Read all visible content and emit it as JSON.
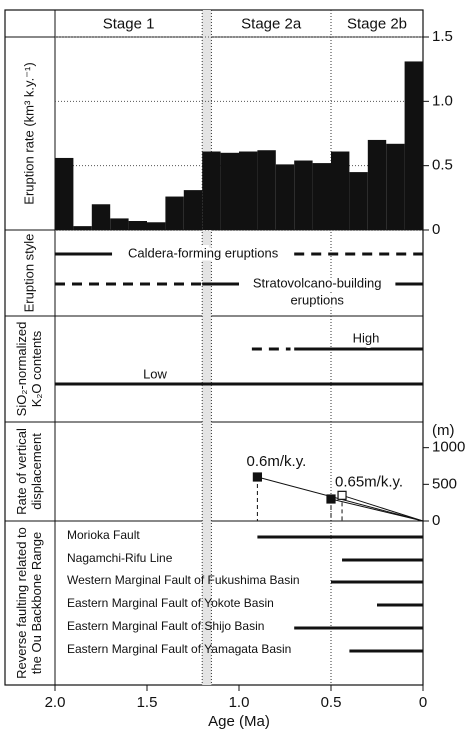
{
  "stages": {
    "names": [
      "Stage 1",
      "Stage 2a",
      "Stage 2b"
    ],
    "boundaries": [
      1.2,
      1.15,
      0.5
    ]
  },
  "x_axis": {
    "label": "Age (Ma)",
    "xlim": [
      2,
      0
    ],
    "xticks": [
      {
        "value": 2,
        "label": "2.0"
      },
      1.5,
      {
        "value": 1,
        "label": "1.0"
      },
      0.5,
      0
    ]
  },
  "chart_data": [
    {
      "type": "histogram",
      "ylabel": [
        "Eruption rate (km³ k.y.⁻¹)"
      ],
      "color": "#111111",
      "bins": [
        2.0,
        1.9,
        1.8,
        1.7,
        1.6,
        1.5,
        1.4,
        1.3,
        1.2,
        1.1,
        1.0,
        0.9,
        0.8,
        0.7,
        0.6,
        0.5,
        0.4,
        0.3,
        0.2,
        0.1,
        0.0
      ],
      "values": [
        0.56,
        0.03,
        0.2,
        0.09,
        0.07,
        0.06,
        0.26,
        0.31,
        0.61,
        0.6,
        0.61,
        0.62,
        0.51,
        0.54,
        0.52,
        0.61,
        0.45,
        0.7,
        0.67,
        1.31
      ],
      "ylim": [
        0,
        1.5
      ],
      "yticks": [
        0,
        {
          "value": 0.5,
          "label": "0.5"
        },
        {
          "value": 1,
          "label": "1.0"
        },
        {
          "value": 1.5,
          "label": "1.5"
        }
      ],
      "grid": true
    },
    {
      "type": "segments",
      "ylabel": [
        "Eruption style"
      ],
      "rows": [
        {
          "label": [
            "Caldera-forming eruptions"
          ],
          "segments": [
            {
              "from": 2.0,
              "to": 1.69,
              "style": "solid"
            },
            {
              "from": 0.7,
              "to": 0,
              "style": "dashed"
            }
          ]
        },
        {
          "label": [
            "Stratovolcano-building",
            "eruptions"
          ],
          "segments": [
            {
              "from": 2.0,
              "to": 1.2,
              "style": "dashed"
            },
            {
              "from": 1.2,
              "to": 1.0,
              "style": "solid"
            },
            {
              "from": 0.15,
              "to": 0,
              "style": "solid"
            }
          ]
        }
      ]
    },
    {
      "type": "segments",
      "ylabel": [
        "SiO₂-normalized",
        "K₂O contents"
      ],
      "rows": [
        {
          "label": [
            "High"
          ],
          "segments": [
            {
              "from": 0.93,
              "to": 0.72,
              "style": "dashed"
            },
            {
              "from": 0.7,
              "to": 0,
              "style": "solid"
            }
          ]
        },
        {
          "label": [
            "Low"
          ],
          "segments": [
            {
              "from": 2.0,
              "to": 0,
              "style": "solid"
            }
          ]
        }
      ]
    },
    {
      "type": "scatter",
      "ylabel": [
        "Rate of vertical",
        "displacement"
      ],
      "yunit": "(m)",
      "ylim": [
        0,
        1350
      ],
      "yticks": [
        0,
        500,
        1000
      ],
      "points": [
        {
          "x": 0.9,
          "y": 600,
          "marker": "filled"
        },
        {
          "x": 0.5,
          "y": 300,
          "marker": "filled"
        },
        {
          "x": 0.44,
          "y": 350,
          "marker": "open"
        }
      ],
      "annotations": [
        "0.6m/k.y.",
        "0.65m/k.y."
      ]
    },
    {
      "type": "segments",
      "ylabel": [
        "Reverse faulting related to",
        "the Ou Backbone Range"
      ],
      "rows": [
        {
          "label": [
            "Morioka Fault"
          ],
          "segments": [
            {
              "from": 0.9,
              "to": 0,
              "style": "solid"
            }
          ]
        },
        {
          "label": [
            "Nagamchi-Rifu Line"
          ],
          "segments": [
            {
              "from": 0.44,
              "to": 0,
              "style": "solid"
            }
          ]
        },
        {
          "label": [
            "Western Marginal Fault of Fukushima Basin"
          ],
          "segments": [
            {
              "from": 0.5,
              "to": 0,
              "style": "solid"
            }
          ]
        },
        {
          "label": [
            "Eastern Marginal Fault of Yokote Basin"
          ],
          "segments": [
            {
              "from": 0.25,
              "to": 0,
              "style": "solid"
            }
          ]
        },
        {
          "label": [
            "Eastern Marginal Fault of Shijo Basin"
          ],
          "segments": [
            {
              "from": 0.7,
              "to": 0,
              "style": "solid"
            }
          ]
        },
        {
          "label": [
            "Eastern Marginal Fault of Yamagata Basin"
          ],
          "segments": [
            {
              "from": 0.4,
              "to": 0,
              "style": "solid"
            }
          ]
        }
      ]
    }
  ]
}
